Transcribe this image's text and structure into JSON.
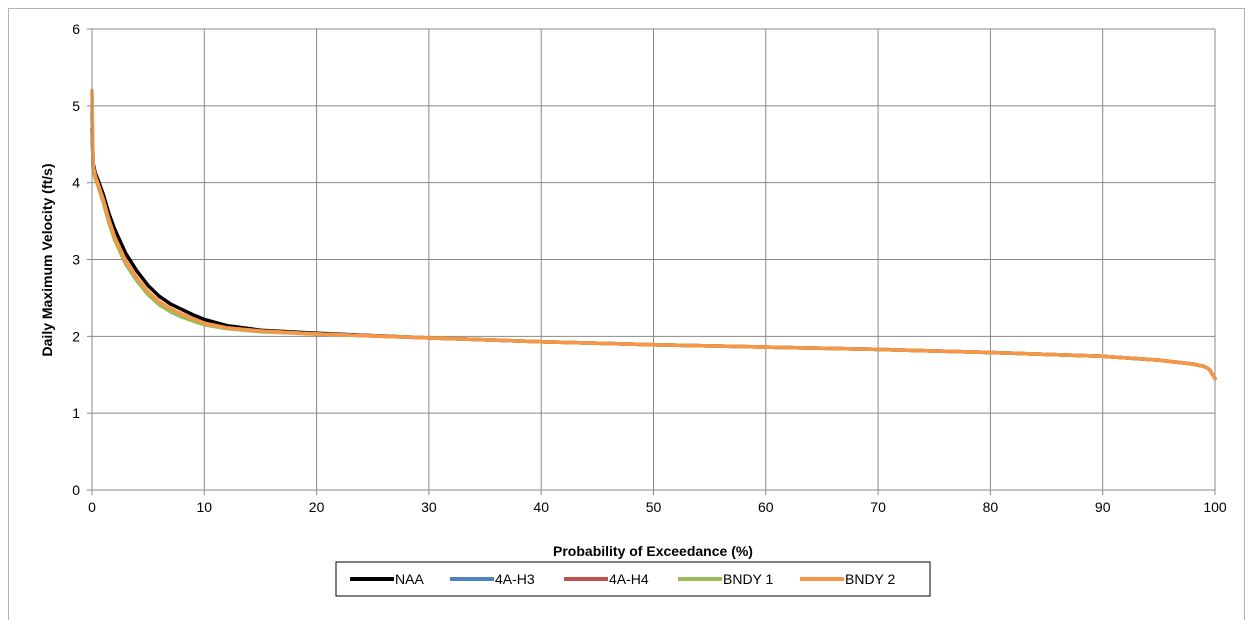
{
  "chart_data": {
    "type": "line",
    "xlabel": "Probability of Exceedance (%)",
    "ylabel": "Daily Maximum Velocity (ft/s)",
    "xlim": [
      0,
      100
    ],
    "ylim": [
      0,
      6
    ],
    "xticks": [
      "0",
      "10",
      "20",
      "30",
      "40",
      "50",
      "60",
      "70",
      "80",
      "90",
      "100"
    ],
    "yticks": [
      "0",
      "1",
      "2",
      "3",
      "4",
      "5",
      "6"
    ],
    "grid": true,
    "legend_position": "bottom",
    "series": [
      {
        "name": "NAA",
        "color": "#000000",
        "x": [
          0,
          0.1,
          0.3,
          0.5,
          1,
          1.5,
          2,
          3,
          4,
          5,
          6,
          7,
          8,
          9,
          10,
          12,
          15,
          20,
          30,
          40,
          50,
          60,
          70,
          80,
          90,
          95,
          98,
          99,
          99.5,
          100
        ],
        "y": [
          4.7,
          4.25,
          4.12,
          4.05,
          3.85,
          3.6,
          3.4,
          3.08,
          2.85,
          2.66,
          2.52,
          2.42,
          2.35,
          2.28,
          2.22,
          2.14,
          2.08,
          2.04,
          1.98,
          1.93,
          1.89,
          1.86,
          1.83,
          1.79,
          1.74,
          1.69,
          1.64,
          1.61,
          1.57,
          1.45
        ]
      },
      {
        "name": "4A-H3",
        "color": "#4f81bd",
        "x": [
          0,
          0.1,
          0.3,
          0.5,
          1,
          1.5,
          2,
          3,
          4,
          5,
          6,
          7,
          8,
          9,
          10,
          12,
          15,
          20,
          30,
          40,
          50,
          60,
          70,
          80,
          90,
          95,
          98,
          99,
          99.5,
          100
        ],
        "y": [
          4.9,
          4.2,
          4.08,
          4.0,
          3.78,
          3.52,
          3.3,
          2.98,
          2.75,
          2.57,
          2.44,
          2.35,
          2.28,
          2.22,
          2.17,
          2.11,
          2.07,
          2.03,
          1.98,
          1.93,
          1.89,
          1.86,
          1.83,
          1.79,
          1.74,
          1.69,
          1.64,
          1.61,
          1.57,
          1.45
        ]
      },
      {
        "name": "4A-H4",
        "color": "#c0504d",
        "x": [
          0,
          0.1,
          0.3,
          0.5,
          1,
          1.5,
          2,
          3,
          4,
          5,
          6,
          7,
          8,
          9,
          10,
          12,
          15,
          20,
          30,
          40,
          50,
          60,
          70,
          80,
          90,
          95,
          98,
          99,
          99.5,
          100
        ],
        "y": [
          4.9,
          4.2,
          4.08,
          4.0,
          3.78,
          3.52,
          3.3,
          2.98,
          2.75,
          2.57,
          2.44,
          2.35,
          2.28,
          2.22,
          2.17,
          2.11,
          2.07,
          2.03,
          1.98,
          1.93,
          1.89,
          1.86,
          1.83,
          1.79,
          1.74,
          1.69,
          1.64,
          1.61,
          1.57,
          1.45
        ]
      },
      {
        "name": "BNDY 1",
        "color": "#9bbb59",
        "x": [
          0,
          0.1,
          0.3,
          0.5,
          1,
          1.5,
          2,
          3,
          4,
          5,
          6,
          7,
          8,
          9,
          10,
          12,
          15,
          20,
          30,
          40,
          50,
          60,
          70,
          80,
          90,
          95,
          98,
          99,
          99.5,
          100
        ],
        "y": [
          5.0,
          4.18,
          4.05,
          3.97,
          3.74,
          3.48,
          3.26,
          2.94,
          2.72,
          2.54,
          2.41,
          2.32,
          2.25,
          2.2,
          2.15,
          2.1,
          2.06,
          2.03,
          1.98,
          1.93,
          1.89,
          1.86,
          1.83,
          1.79,
          1.74,
          1.69,
          1.64,
          1.61,
          1.57,
          1.45
        ]
      },
      {
        "name": "BNDY 2",
        "color": "#f79646",
        "x": [
          0,
          0.1,
          0.3,
          0.5,
          1,
          1.5,
          2,
          3,
          4,
          5,
          6,
          7,
          8,
          9,
          10,
          12,
          15,
          20,
          30,
          40,
          50,
          60,
          70,
          80,
          90,
          95,
          98,
          99,
          99.5,
          100
        ],
        "y": [
          5.2,
          4.22,
          4.08,
          4.0,
          3.78,
          3.52,
          3.3,
          2.98,
          2.76,
          2.58,
          2.45,
          2.36,
          2.29,
          2.23,
          2.17,
          2.11,
          2.07,
          2.03,
          1.98,
          1.93,
          1.89,
          1.86,
          1.83,
          1.79,
          1.74,
          1.69,
          1.64,
          1.61,
          1.57,
          1.45
        ]
      }
    ]
  }
}
